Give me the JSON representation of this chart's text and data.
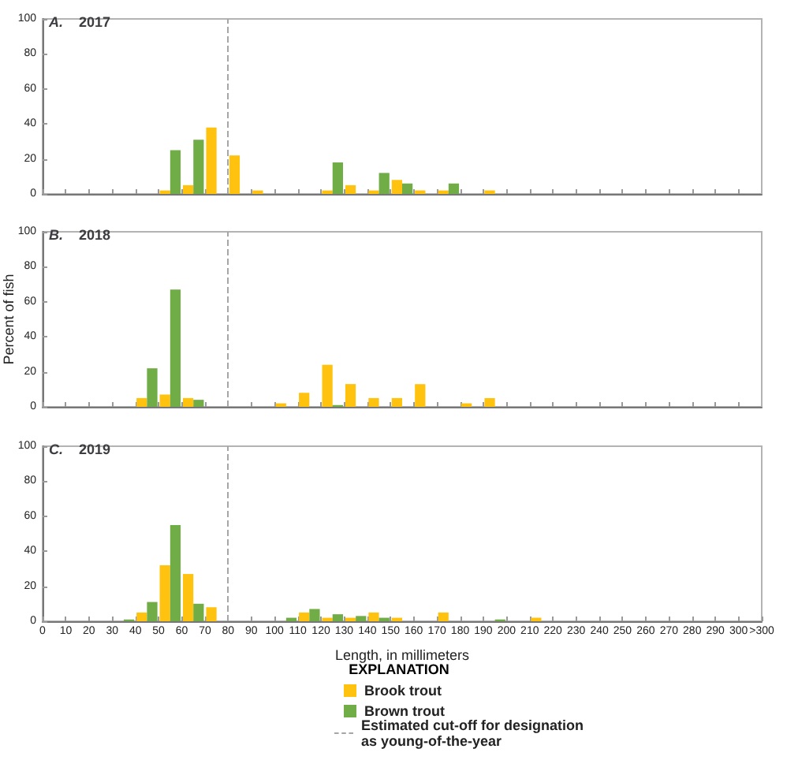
{
  "chart_data": [
    {
      "type": "bar",
      "title": "A. 2017",
      "series": [
        {
          "color": "#ffc20e",
          "x": [
            55,
            65,
            75,
            85,
            95,
            125,
            135,
            145,
            155,
            165,
            175,
            195
          ],
          "values": [
            2,
            5,
            38,
            22,
            2,
            2,
            5,
            2,
            8,
            2,
            2,
            2
          ]
        },
        {
          "color": "#70ad47",
          "x": [
            55,
            65,
            125,
            145,
            155,
            175
          ],
          "values": [
            25,
            31,
            18,
            12,
            6,
            6
          ]
        }
      ],
      "xlim": [
        0,
        310
      ],
      "xticks": [
        0,
        10,
        20,
        30,
        40,
        50,
        60,
        70,
        80,
        90,
        100,
        110,
        120,
        130,
        140,
        150,
        160,
        170,
        180,
        190,
        200,
        210,
        220,
        230,
        240,
        250,
        260,
        270,
        280,
        290,
        300
      ],
      "ylim": [
        0,
        100
      ],
      "yticks": [
        0,
        20,
        40,
        60,
        80,
        100
      ],
      "tick_labels": "y",
      "ref_lines": [
        {
          "axis": "x",
          "value": 80,
          "color": "#a6a6a6",
          "line_style": "dashed"
        }
      ]
    },
    {
      "type": "bar",
      "title": "B. 2018",
      "ylabel": "Percent of fish",
      "series": [
        {
          "color": "#ffc20e",
          "x": [
            45,
            55,
            65,
            105,
            115,
            125,
            135,
            145,
            155,
            165,
            185,
            195
          ],
          "values": [
            5,
            7,
            5,
            2,
            8,
            24,
            13,
            5,
            5,
            13,
            2,
            5
          ]
        },
        {
          "color": "#70ad47",
          "x": [
            45,
            55,
            65,
            125
          ],
          "values": [
            22,
            67,
            4,
            1
          ]
        }
      ],
      "xlim": [
        0,
        310
      ],
      "xticks": [
        0,
        10,
        20,
        30,
        40,
        50,
        60,
        70,
        80,
        90,
        100,
        110,
        120,
        130,
        140,
        150,
        160,
        170,
        180,
        190,
        200,
        210,
        220,
        230,
        240,
        250,
        260,
        270,
        280,
        290,
        300
      ],
      "ylim": [
        0,
        100
      ],
      "yticks": [
        0,
        20,
        40,
        60,
        80,
        100
      ],
      "tick_labels": "y",
      "ref_lines": [
        {
          "axis": "x",
          "value": 80,
          "color": "#a6a6a6",
          "line_style": "dashed"
        }
      ]
    },
    {
      "type": "bar",
      "title": "C. 2019",
      "xlabel": "Length, in millimeters",
      "legend_title": "EXPLANATION",
      "series": [
        {
          "name": "Brook trout",
          "color": "#ffc20e",
          "x": [
            45,
            55,
            65,
            75,
            115,
            125,
            135,
            145,
            155,
            175,
            215
          ],
          "values": [
            5,
            32,
            27,
            8,
            5,
            2,
            2,
            5,
            2,
            5,
            2
          ]
        },
        {
          "name": "Brown trout",
          "color": "#70ad47",
          "x": [
            35,
            45,
            55,
            65,
            105,
            115,
            125,
            135,
            145,
            195
          ],
          "values": [
            1,
            11,
            55,
            10,
            2,
            7,
            4,
            3,
            2,
            1
          ]
        }
      ],
      "xlim": [
        0,
        310
      ],
      "xticks": [
        0,
        10,
        20,
        30,
        40,
        50,
        60,
        70,
        80,
        90,
        100,
        110,
        120,
        130,
        140,
        150,
        160,
        170,
        180,
        190,
        200,
        210,
        220,
        230,
        240,
        250,
        260,
        270,
        280,
        290,
        300,
        {
          "value": 310,
          "label": ">300"
        }
      ],
      "ylim": [
        0,
        100
      ],
      "yticks": [
        0,
        20,
        40,
        60,
        80,
        100
      ],
      "legend": "bottom",
      "ref_lines": [
        {
          "axis": "x",
          "value": 80,
          "label": "Estimated cut-off for designation as young-of-the-year",
          "color": "#a6a6a6",
          "line_style": "dashed"
        }
      ]
    }
  ]
}
